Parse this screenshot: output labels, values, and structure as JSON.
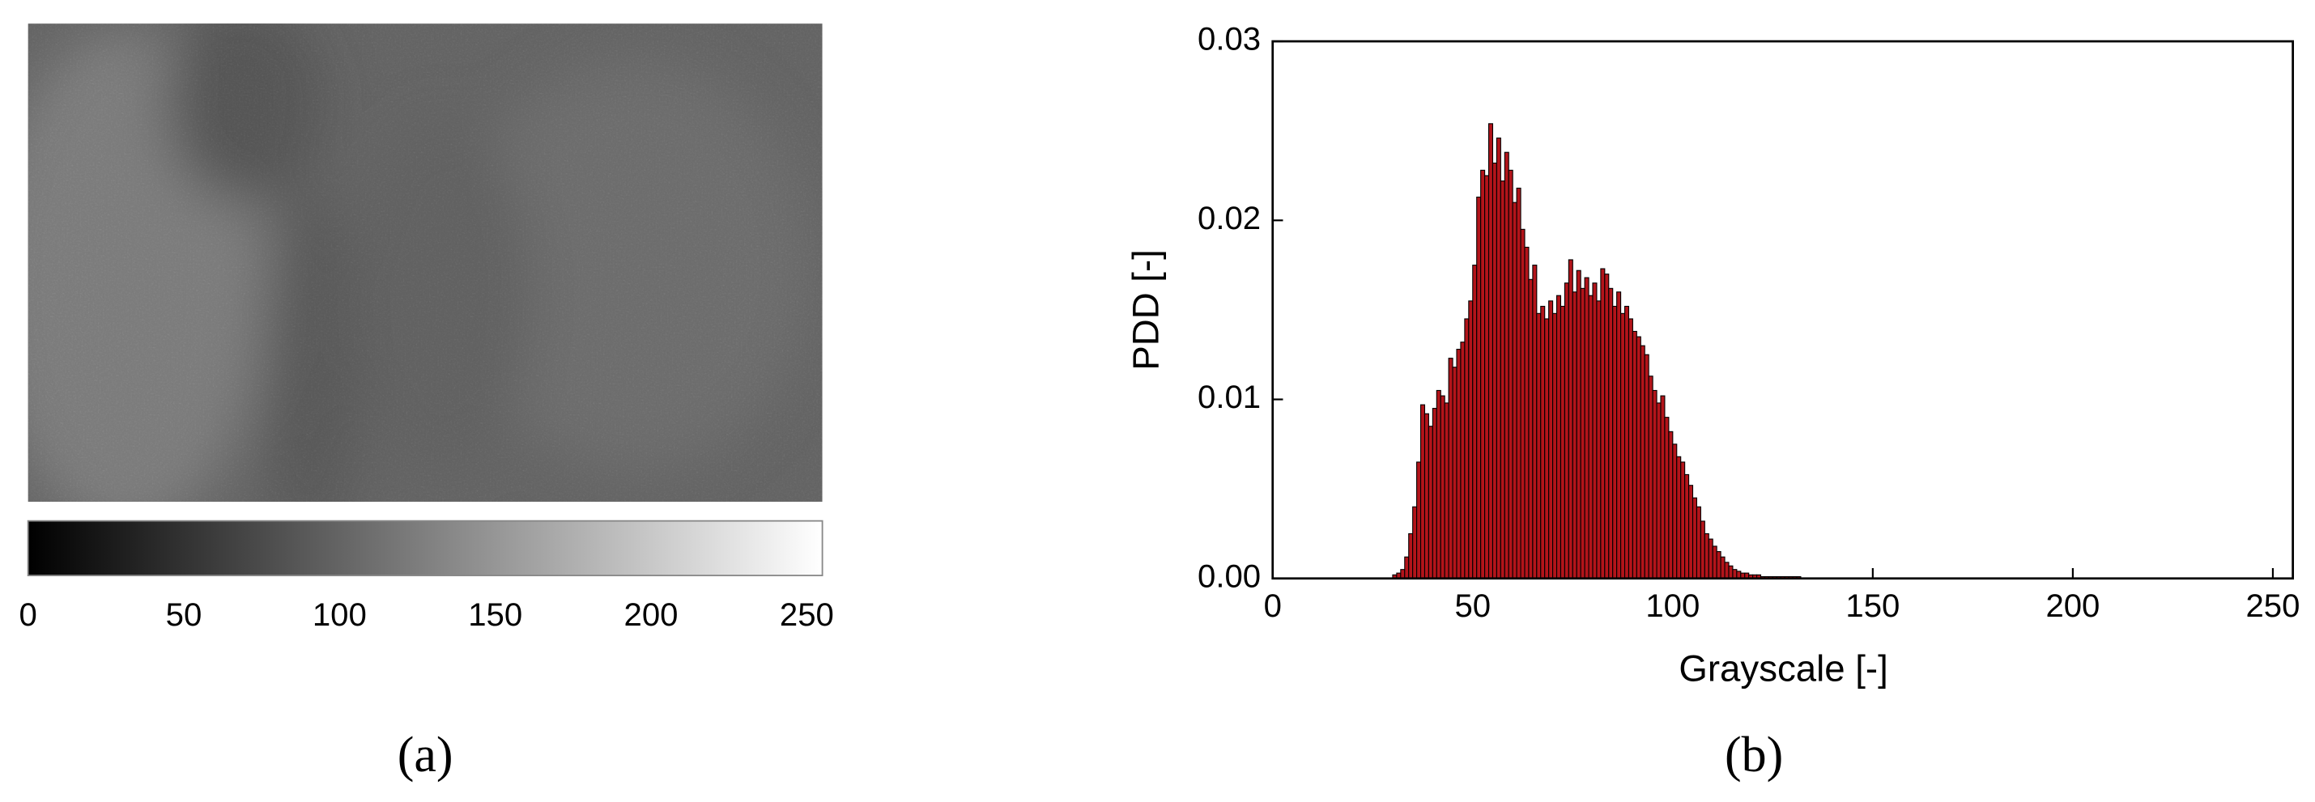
{
  "panel_a": {
    "label": "(a)",
    "colorbar": {
      "lim": [
        0,
        255
      ],
      "ticks": [
        0,
        50,
        100,
        150,
        200,
        250
      ]
    }
  },
  "chart_data": {
    "type": "histogram",
    "panel_label": "(b)",
    "x_label": "Grayscale [-]",
    "y_label": "PDD [-]",
    "color": "#b3141a",
    "edgecolor": "#000000",
    "xlim": [
      0,
      255
    ],
    "xticks": [
      0,
      50,
      100,
      150,
      200,
      250
    ],
    "ylim": [
      0,
      0.03
    ],
    "yticks": [
      {
        "value": 0,
        "label": "0.00"
      },
      0.01,
      0.02,
      0.03
    ],
    "bins": [
      30,
      31,
      32,
      33,
      34,
      35,
      36,
      37,
      38,
      39,
      40,
      41,
      42,
      43,
      44,
      45,
      46,
      47,
      48,
      49,
      50,
      51,
      52,
      53,
      54,
      55,
      56,
      57,
      58,
      59,
      60,
      61,
      62,
      63,
      64,
      65,
      66,
      67,
      68,
      69,
      70,
      71,
      72,
      73,
      74,
      75,
      76,
      77,
      78,
      79,
      80,
      81,
      82,
      83,
      84,
      85,
      86,
      87,
      88,
      89,
      90,
      91,
      92,
      93,
      94,
      95,
      96,
      97,
      98,
      99,
      100,
      101,
      102,
      103,
      104,
      105,
      106,
      107,
      108,
      109,
      110,
      111,
      112,
      113,
      114,
      115,
      116,
      117,
      118,
      119,
      120,
      121,
      122,
      123,
      124,
      125,
      126,
      127,
      128,
      129,
      130,
      131,
      132
    ],
    "values": [
      0.0002,
      0.0003,
      0.0005,
      0.0012,
      0.0025,
      0.004,
      0.0065,
      0.0097,
      0.0092,
      0.0085,
      0.0095,
      0.0105,
      0.0102,
      0.0098,
      0.0123,
      0.0118,
      0.0128,
      0.0132,
      0.0145,
      0.0155,
      0.0175,
      0.0213,
      0.0228,
      0.0225,
      0.0254,
      0.0232,
      0.0246,
      0.0222,
      0.0238,
      0.0228,
      0.021,
      0.0218,
      0.0195,
      0.0185,
      0.0167,
      0.0175,
      0.0148,
      0.0152,
      0.0145,
      0.0155,
      0.0148,
      0.0158,
      0.0152,
      0.0165,
      0.0178,
      0.016,
      0.0172,
      0.0162,
      0.0168,
      0.0158,
      0.0165,
      0.0155,
      0.0173,
      0.017,
      0.0162,
      0.0152,
      0.016,
      0.0148,
      0.0152,
      0.0145,
      0.0138,
      0.0135,
      0.013,
      0.0125,
      0.0113,
      0.0105,
      0.0098,
      0.0102,
      0.009,
      0.0082,
      0.0075,
      0.0068,
      0.0065,
      0.0058,
      0.0052,
      0.0045,
      0.004,
      0.0032,
      0.0025,
      0.0022,
      0.0018,
      0.0015,
      0.0012,
      0.0009,
      0.0007,
      0.0005,
      0.0004,
      0.0003,
      0.0003,
      0.0002,
      0.0002,
      0.0002,
      0.0001,
      0.0001,
      0.0001,
      0.0001,
      0.0001,
      0.0001,
      0.0001,
      0.0001,
      0.0001,
      0.0001
    ]
  }
}
